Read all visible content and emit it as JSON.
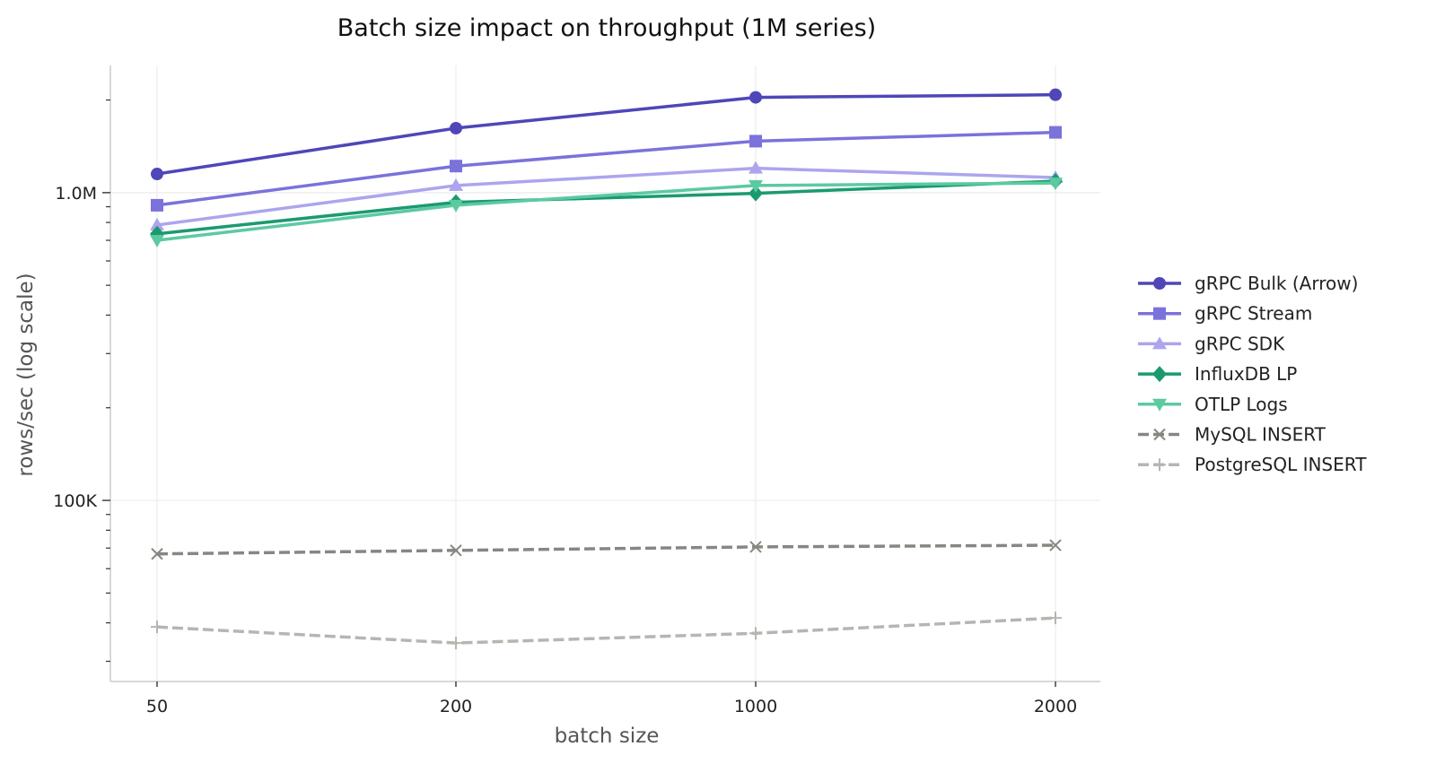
{
  "chart_data": {
    "type": "line",
    "title": "Batch size impact on throughput (1M series)",
    "xlabel": "batch size",
    "ylabel": "rows/sec (log scale)",
    "y_scale": "log",
    "ylim": [
      25800,
      2590000
    ],
    "grid": true,
    "legend_position": "right",
    "categories": [
      "50",
      "200",
      "1000",
      "2000"
    ],
    "y_ticks": [
      {
        "value": 100000,
        "label": "100K"
      },
      {
        "value": 1000000,
        "label": "1.0M"
      }
    ],
    "series": [
      {
        "name": "gRPC Bulk (Arrow)",
        "color": "#4f46b8",
        "marker": "circle",
        "dash": false,
        "values": [
          1150000,
          1620000,
          2040000,
          2080000
        ]
      },
      {
        "name": "gRPC Stream",
        "color": "#7b72dc",
        "marker": "square",
        "dash": false,
        "values": [
          910000,
          1220000,
          1470000,
          1570000
        ]
      },
      {
        "name": "gRPC SDK",
        "color": "#aca5ee",
        "marker": "triangle-up",
        "dash": false,
        "values": [
          785000,
          1055000,
          1200000,
          1120000
        ]
      },
      {
        "name": "InfluxDB LP",
        "color": "#1b9a70",
        "marker": "diamond",
        "dash": false,
        "values": [
          735000,
          930000,
          995000,
          1090000
        ]
      },
      {
        "name": "OTLP Logs",
        "color": "#5ccaa0",
        "marker": "triangle-down",
        "dash": false,
        "values": [
          700000,
          910000,
          1055000,
          1075000
        ]
      },
      {
        "name": "MySQL INSERT",
        "color": "#878782",
        "marker": "x",
        "dash": true,
        "values": [
          67000,
          68800,
          70600,
          71500
        ]
      },
      {
        "name": "PostgreSQL INSERT",
        "color": "#b6b6b1",
        "marker": "plus",
        "dash": true,
        "values": [
          38800,
          34400,
          37000,
          41500
        ]
      }
    ]
  }
}
